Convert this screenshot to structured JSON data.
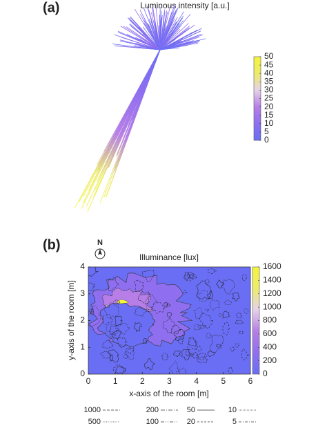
{
  "chart_data": [
    {
      "type": "intensity-distribution",
      "label": "(a)",
      "title": "Luminous intensity [a.u.]",
      "colorbar": {
        "lim": [
          0,
          50
        ],
        "ticks": [
          0,
          5,
          10,
          15,
          20,
          25,
          30,
          35,
          40,
          45,
          50
        ]
      },
      "colormap": [
        "#6a6ef4",
        "#8f6ff0",
        "#b67ee6",
        "#e6d2ea",
        "#ecec6a",
        "#f4f43c"
      ]
    },
    {
      "type": "contour",
      "label": "(b)",
      "north": "N",
      "title": "Illuminance [lux]",
      "x_label": "x-axis of the room [m]",
      "y_label": "y-axis of the room [m]",
      "xlim": [
        0,
        6
      ],
      "xticks": [
        0,
        1,
        2,
        3,
        4,
        5,
        6
      ],
      "ylim": [
        0,
        4
      ],
      "yticks": [
        0,
        1,
        2,
        3,
        4
      ],
      "colorbar": {
        "lim": [
          0,
          1600
        ],
        "ticks": [
          0,
          200,
          400,
          600,
          800,
          1000,
          1200,
          1400,
          1600
        ]
      },
      "colormap": [
        "#6a6ef4",
        "#8f6ff0",
        "#b67ee6",
        "#e6d2ea",
        "#ecec6a",
        "#f4f43c"
      ],
      "contour_levels": [
        1000,
        200,
        50,
        10,
        500,
        100,
        20,
        5
      ]
    }
  ]
}
